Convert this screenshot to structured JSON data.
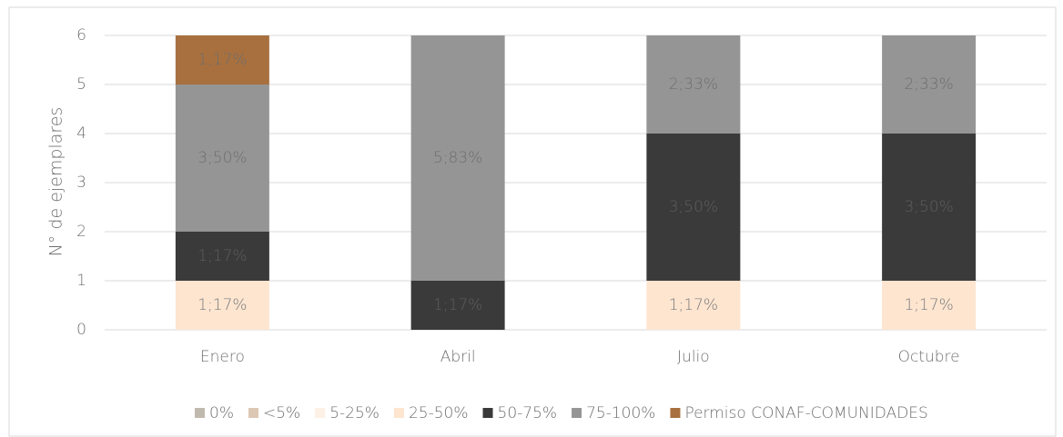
{
  "chart_data": {
    "type": "stacked_bar",
    "y_label": "N° de ejemplares",
    "categories": [
      "Enero",
      "Abril",
      "Julio",
      "Octubre"
    ],
    "series": [
      {
        "name": "0%",
        "color": "#c0b9ae",
        "values": [
          0,
          0,
          0,
          0
        ]
      },
      {
        "name": "<5%",
        "color": "#dcc7b4",
        "values": [
          0,
          0,
          0,
          0
        ]
      },
      {
        "name": "5-25%",
        "color": "#fdf1e6",
        "values": [
          0,
          0,
          0,
          0
        ]
      },
      {
        "name": "25-50%",
        "color": "#fde5d0",
        "values": [
          1,
          0,
          1,
          1
        ],
        "value_labels": [
          "1;17%",
          null,
          "1;17%",
          "1;17%"
        ]
      },
      {
        "name": "50-75%",
        "color": "#3a3a3a",
        "values": [
          1,
          1,
          3,
          3
        ],
        "value_labels": [
          "1;17%",
          "1;17%",
          "3;50%",
          "3;50%"
        ]
      },
      {
        "name": "75-100%",
        "color": "#959595",
        "values": [
          3,
          5,
          2,
          2
        ],
        "value_labels": [
          "3;50%",
          "5;83%",
          "2;33%",
          "2;33%"
        ]
      },
      {
        "name": "Permiso CONAF-COMUNIDADES",
        "color": "#a8703e",
        "values": [
          1,
          0,
          0,
          0
        ],
        "value_labels": [
          "1;17%",
          null,
          null,
          null
        ]
      }
    ],
    "ylim": [
      0,
      6
    ],
    "yticks": [
      0,
      1,
      2,
      3,
      4,
      5,
      6
    ],
    "grid": true,
    "legend": "bottom"
  }
}
